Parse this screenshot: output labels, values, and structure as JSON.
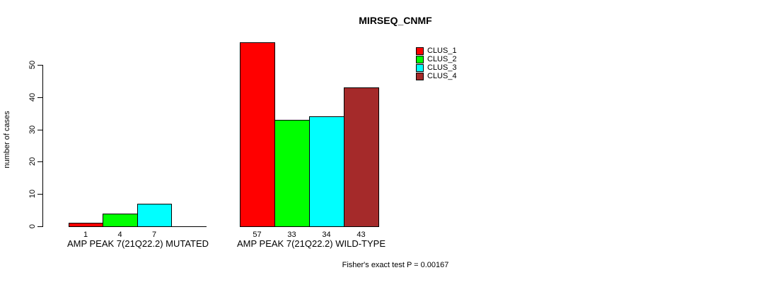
{
  "chart_data": {
    "type": "bar",
    "title": "MIRSEQ_CNMF",
    "ylabel": "number of cases",
    "yticks": [
      0,
      10,
      20,
      30,
      40,
      50
    ],
    "ylim": [
      0,
      57
    ],
    "grid": false,
    "legend_position": "top-right",
    "background": "#FFFFFF",
    "axis_color": "#000000",
    "categories": [
      "AMP PEAK 7(21Q22.2) MUTATED",
      "AMP PEAK 7(21Q22.2) WILD-TYPE"
    ],
    "series": [
      {
        "name": "CLUS_1",
        "color": "#FF0000",
        "values": [
          1,
          57
        ]
      },
      {
        "name": "CLUS_2",
        "color": "#00FF00",
        "values": [
          4,
          33
        ]
      },
      {
        "name": "CLUS_3",
        "color": "#00FFFF",
        "values": [
          7,
          34
        ]
      },
      {
        "name": "CLUS_4",
        "color": "#A52A2A",
        "values": [
          0,
          43
        ]
      }
    ],
    "bar_value_labels": [
      [
        "1",
        "4",
        "7",
        ""
      ],
      [
        "57",
        "33",
        "34",
        "43"
      ]
    ],
    "annotation": "Fisher's exact test P = 0.00167"
  }
}
